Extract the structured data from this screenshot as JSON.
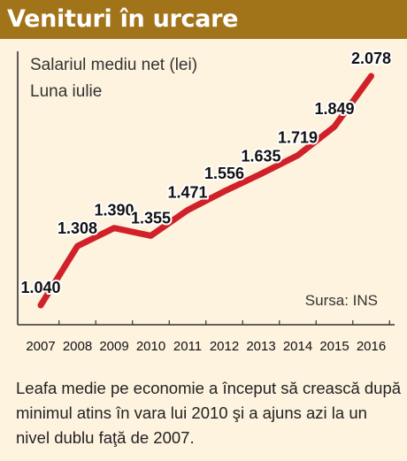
{
  "header": {
    "title": "Venituri în urcare"
  },
  "note": "Leafa medie pe economie a început să crească după minimul atins în vara lui 2010 şi a ajuns azi la un nivel dublu faţă de 2007.",
  "chart_data": {
    "type": "line",
    "title": "Salariul mediu net (lei)",
    "subtitle": "Luna iulie",
    "source": "Sursa: INS",
    "categories": [
      "2007",
      "2008",
      "2009",
      "2010",
      "2011",
      "2012",
      "2013",
      "2014",
      "2015",
      "2016"
    ],
    "values": [
      1040,
      1308,
      1390,
      1355,
      1471,
      1556,
      1635,
      1719,
      1849,
      2078
    ],
    "value_labels": [
      "1.040",
      "1.308",
      "1.390",
      "1.355",
      "1.471",
      "1.556",
      "1.635",
      "1.719",
      "1.849",
      "2.078"
    ],
    "ylim": [
      1000,
      2100
    ],
    "grid": false,
    "line_color": "#d0202a"
  }
}
